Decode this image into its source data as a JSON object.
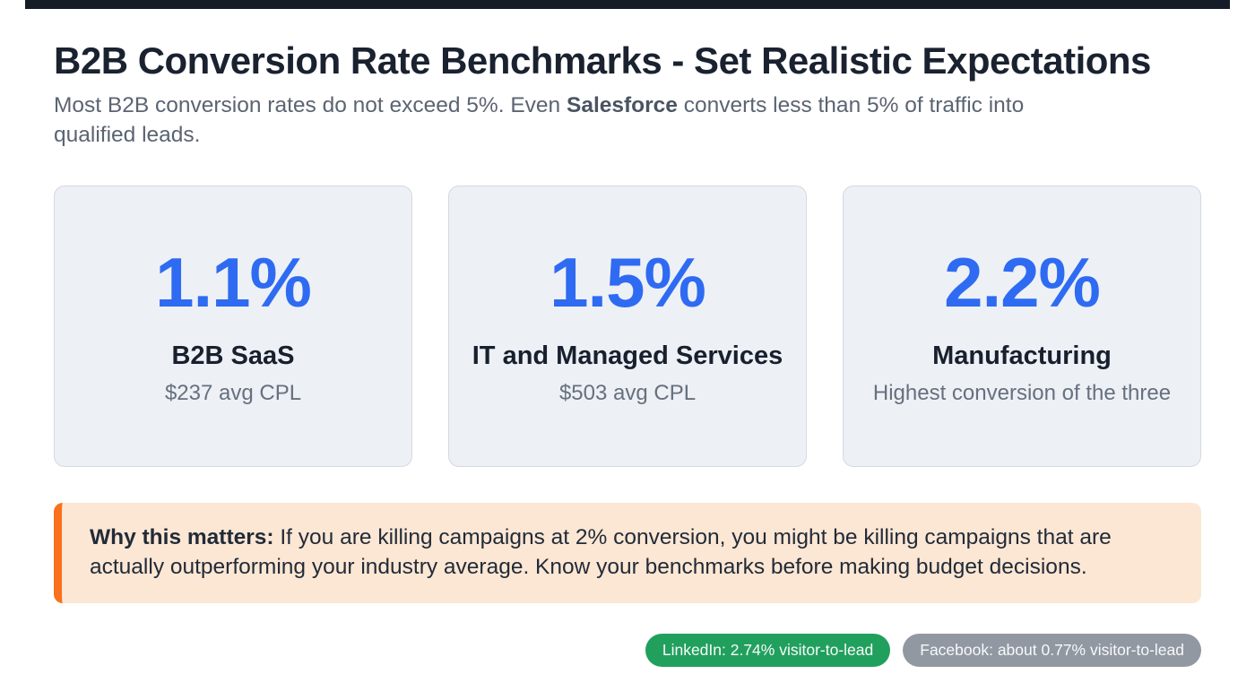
{
  "page": {
    "title": "B2B Conversion Rate Benchmarks - Set Realistic Expectations",
    "subtitle_pre": "Most B2B conversion rates do not exceed 5%. Even ",
    "subtitle_bold": "Salesforce",
    "subtitle_post": " converts less than 5% of traffic into qualified leads."
  },
  "cards": [
    {
      "value": "1.1%",
      "label": "B2B SaaS",
      "sub": "$237 avg CPL"
    },
    {
      "value": "1.5%",
      "label": "IT and Managed Services",
      "sub": "$503 avg CPL"
    },
    {
      "value": "2.2%",
      "label": "Manufacturing",
      "sub": "Highest conversion of the three"
    }
  ],
  "callout": {
    "lead": "Why this matters:",
    "body": " If you are killing campaigns at 2% conversion, you might be killing campaigns that are actually outperforming your industry average. Know your benchmarks before making budget decisions."
  },
  "badges": [
    {
      "label": "LinkedIn: 2.74% visitor-to-lead"
    },
    {
      "label": "Facebook: about 0.77% visitor-to-lead"
    }
  ],
  "colors": {
    "top_bar": "#141c28",
    "accent_blue": "#2e6bf2",
    "card_background": "#edf0f5",
    "card_border": "#d3d9e3",
    "callout_background": "#fce7d4",
    "callout_border": "#f9701d",
    "badge_green": "#21a05d",
    "badge_gray": "#9298a2"
  }
}
